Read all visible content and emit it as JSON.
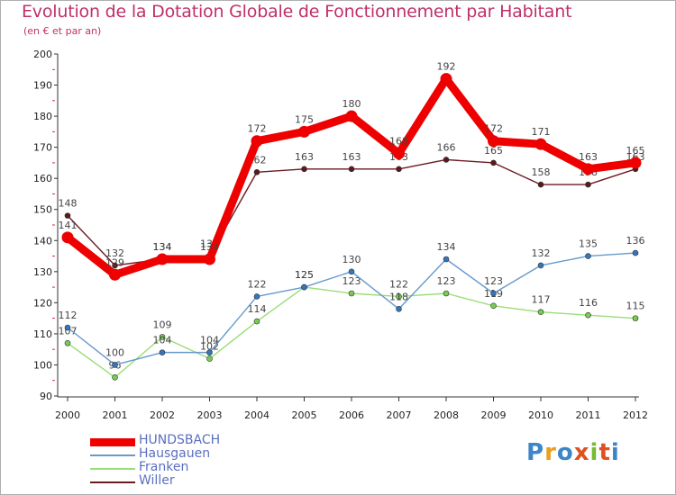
{
  "header": {
    "title": "Evolution de la Dotation Globale de Fonctionnement par Habitant",
    "subtitle": "(en € et par an)"
  },
  "logo": {
    "text": "Proxiti"
  },
  "chart_data": {
    "type": "line",
    "x": [
      "2000",
      "2001",
      "2002",
      "2003",
      "2004",
      "2005",
      "2006",
      "2007",
      "2008",
      "2009",
      "2010",
      "2011",
      "2012"
    ],
    "ylim": [
      90,
      200
    ],
    "yticks": [
      90,
      100,
      110,
      120,
      130,
      140,
      150,
      160,
      170,
      180,
      190,
      200
    ],
    "grid": false,
    "legend_position": "bottom-left",
    "series": [
      {
        "name": "Willer",
        "color": "#6b1a22",
        "marker": "#5a1a1a",
        "values": [
          148,
          132,
          134,
          135,
          162,
          163,
          163,
          163,
          166,
          165,
          158,
          158,
          163
        ]
      },
      {
        "name": "Franken",
        "color": "#99dd77",
        "marker": "#77cc55",
        "values": [
          107,
          96,
          109,
          102,
          114,
          125,
          123,
          122,
          123,
          119,
          117,
          116,
          115
        ]
      },
      {
        "name": "Hausgauen",
        "color": "#6699cc",
        "marker": "#3377bb",
        "values": [
          112,
          100,
          104,
          104,
          122,
          125,
          130,
          118,
          134,
          123,
          132,
          135,
          136
        ]
      },
      {
        "name": "HUNDSBACH",
        "color": "#ee0000",
        "marker": "#ee0000",
        "values": [
          141,
          129,
          134,
          134,
          172,
          175,
          180,
          168,
          192,
          172,
          171,
          163,
          165
        ]
      }
    ]
  }
}
